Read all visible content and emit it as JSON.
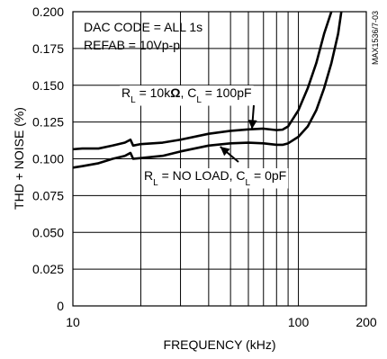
{
  "chart_data": {
    "type": "line",
    "xlabel": "FREQUENCY (kHz)",
    "ylabel": "THD + NOISE (%)",
    "x_scale": "log",
    "xlim": [
      10,
      200
    ],
    "ylim": [
      0,
      0.2
    ],
    "grid": true,
    "x_ticks": [
      {
        "value": 10,
        "label": "10"
      },
      {
        "value": 100,
        "label": "100"
      },
      {
        "value": 200,
        "label": "200"
      }
    ],
    "y_ticks": [
      {
        "value": 0,
        "label": "0"
      },
      {
        "value": 0.025,
        "label": "0.025"
      },
      {
        "value": 0.05,
        "label": "0.050"
      },
      {
        "value": 0.075,
        "label": "0.075"
      },
      {
        "value": 0.1,
        "label": "0.100"
      },
      {
        "value": 0.125,
        "label": "0.125"
      },
      {
        "value": 0.15,
        "label": "0.150"
      },
      {
        "value": 0.175,
        "label": "0.175"
      },
      {
        "value": 0.2,
        "label": "0.200"
      }
    ],
    "annotations": [
      {
        "text": "DAC CODE = ALL 1s"
      },
      {
        "text": "REFAB = 10Vp-p"
      }
    ],
    "series_labels": [
      {
        "parts": [
          {
            "t": "R"
          },
          {
            "t": "L",
            "sub": true
          },
          {
            "t": " = 10k"
          },
          {
            "t": "Ω",
            "bold": true
          },
          {
            "t": ", C"
          },
          {
            "t": "L",
            "sub": true
          },
          {
            "t": " = 100pF"
          }
        ]
      },
      {
        "parts": [
          {
            "t": "R"
          },
          {
            "t": "L",
            "sub": true
          },
          {
            "t": " = NO LOAD, C"
          },
          {
            "t": "L",
            "sub": true
          },
          {
            "t": " = 0pF"
          }
        ]
      }
    ],
    "watermark": "MAX1536/7-03",
    "series": [
      {
        "x": [
          10,
          11,
          13,
          15,
          17,
          18,
          18.5,
          20,
          25,
          30,
          40,
          50,
          60,
          70,
          80,
          85,
          90,
          100,
          110,
          120,
          130,
          140
        ],
        "y": [
          0.1065,
          0.107,
          0.107,
          0.109,
          0.111,
          0.113,
          0.109,
          0.11,
          0.111,
          0.113,
          0.117,
          0.119,
          0.12,
          0.1205,
          0.1195,
          0.1198,
          0.122,
          0.133,
          0.148,
          0.165,
          0.185,
          0.2
        ]
      },
      {
        "x": [
          10,
          11,
          13,
          15,
          17,
          18,
          18.5,
          20,
          25,
          30,
          40,
          50,
          60,
          70,
          80,
          85,
          90,
          100,
          110,
          120,
          130,
          140,
          150,
          155
        ],
        "y": [
          0.094,
          0.095,
          0.097,
          0.1,
          0.102,
          0.104,
          0.1,
          0.1005,
          0.102,
          0.105,
          0.109,
          0.1105,
          0.111,
          0.1105,
          0.1095,
          0.1095,
          0.1105,
          0.115,
          0.122,
          0.133,
          0.148,
          0.165,
          0.185,
          0.2
        ]
      }
    ]
  }
}
